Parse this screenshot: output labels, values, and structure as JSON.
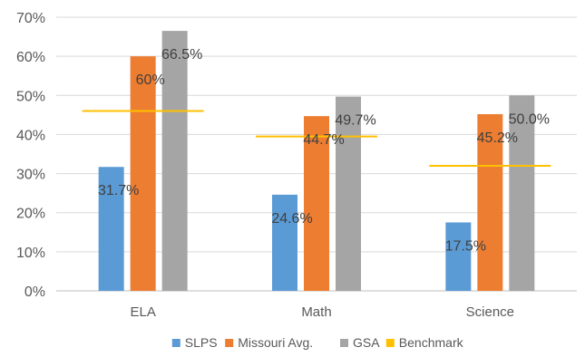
{
  "chart_data": {
    "type": "bar",
    "categories": [
      "ELA",
      "Math",
      "Science"
    ],
    "series": [
      {
        "name": "SLPS",
        "values": [
          31.7,
          24.6,
          17.5
        ],
        "color": "#5b9bd5",
        "labels": [
          "31.7%",
          "24.6%",
          "17.5%"
        ]
      },
      {
        "name": "Missouri Avg.",
        "values": [
          60.0,
          44.7,
          45.2
        ],
        "color": "#ed7d31",
        "labels": [
          "60%",
          "44.7%",
          "45.2%"
        ]
      },
      {
        "name": "GSA",
        "values": [
          66.5,
          49.7,
          50.0
        ],
        "color": "#a5a5a5",
        "labels": [
          "66.5%",
          "49.7%",
          "50.0%"
        ]
      }
    ],
    "benchmark": {
      "name": "Benchmark",
      "values": [
        46,
        39.5,
        32
      ],
      "color": "#ffc000"
    },
    "yticks": [
      "0%",
      "10%",
      "20%",
      "30%",
      "40%",
      "50%",
      "60%",
      "70%"
    ],
    "ylim": [
      0,
      70
    ],
    "grid": true,
    "legend_position": "bottom"
  }
}
